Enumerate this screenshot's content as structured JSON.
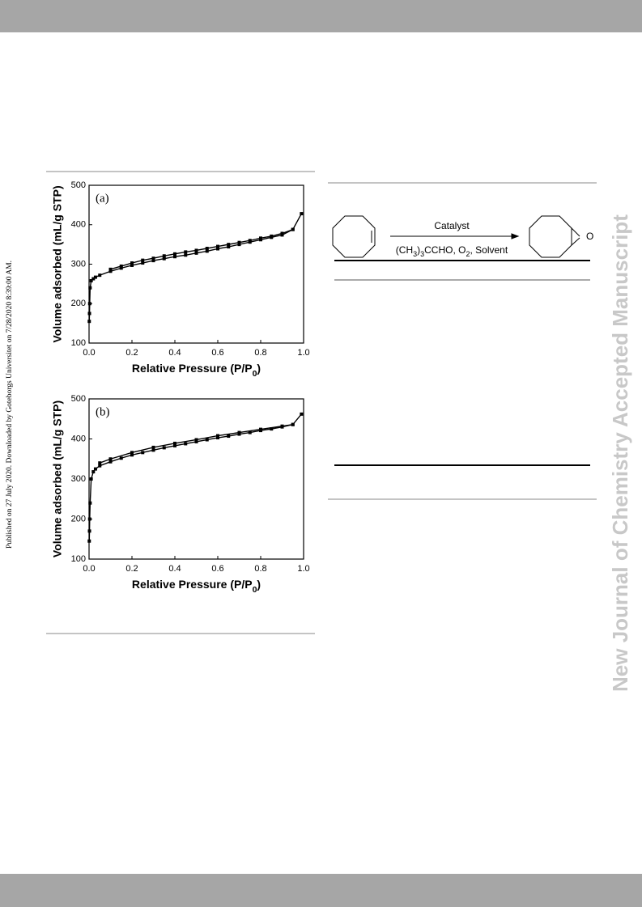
{
  "side_note": "Published on 27 July 2020. Downloaded by Goteborgs Universitet on 7/28/2020 8:39:00 AM.",
  "watermark": "New Journal of Chemistry Accepted Manuscript",
  "scheme": {
    "above_arrow": "Catalyst",
    "below_arrow": [
      {
        "text": "(CH"
      },
      {
        "text": "3",
        "sub": true
      },
      {
        "text": ")"
      },
      {
        "text": "3",
        "sub": true
      },
      {
        "text": "CCHO, O"
      },
      {
        "text": "2",
        "sub": true
      },
      {
        "text": ", Solvent"
      }
    ],
    "product_atom": "O"
  },
  "chart_data": [
    {
      "type": "line",
      "annotation": "(a)",
      "y_label": "Volume adsorbed (mL/g STP)",
      "x_label": [
        {
          "text": "Relative Pressure (P/P"
        },
        {
          "text": "0",
          "sub": true
        },
        {
          "text": ")"
        }
      ],
      "xlim": [
        0,
        1
      ],
      "ylim": [
        100,
        500
      ],
      "xticks": [
        {
          "value": 0,
          "label": "0.0"
        },
        0.2,
        0.4,
        0.6,
        0.8,
        {
          "value": 1,
          "label": "1.0"
        }
      ],
      "yticks": [
        100,
        200,
        300,
        400,
        500
      ],
      "color": "#000000",
      "series": [
        {
          "x": [
            0.001,
            0.002,
            0.003,
            0.005,
            0.01,
            0.02,
            0.03,
            0.05,
            0.1,
            0.15,
            0.2,
            0.25,
            0.3,
            0.35,
            0.4,
            0.45,
            0.5,
            0.55,
            0.6,
            0.65,
            0.7,
            0.75,
            0.8,
            0.85,
            0.9,
            0.95,
            0.99
          ],
          "values": [
            155,
            175,
            200,
            240,
            258,
            263,
            267,
            272,
            282,
            290,
            297,
            303,
            309,
            314,
            319,
            323,
            328,
            333,
            339,
            344,
            350,
            356,
            362,
            368,
            374,
            388,
            428
          ]
        },
        {
          "x": [
            0.95,
            0.9,
            0.85,
            0.8,
            0.75,
            0.7,
            0.65,
            0.6,
            0.55,
            0.5,
            0.45,
            0.4,
            0.35,
            0.3,
            0.25,
            0.2,
            0.15,
            0.1
          ],
          "values": [
            388,
            378,
            371,
            366,
            360,
            355,
            350,
            345,
            340,
            335,
            331,
            326,
            321,
            315,
            310,
            303,
            295,
            287
          ]
        }
      ]
    },
    {
      "type": "line",
      "annotation": "(b)",
      "y_label": "Volume adsorbed (mL/g STP)",
      "x_label": [
        {
          "text": "Relative Pressure (P/P"
        },
        {
          "text": "0",
          "sub": true
        },
        {
          "text": ")"
        }
      ],
      "xlim": [
        0,
        1
      ],
      "ylim": [
        100,
        500
      ],
      "xticks": [
        {
          "value": 0,
          "label": "0.0"
        },
        0.2,
        0.4,
        0.6,
        0.8,
        {
          "value": 1,
          "label": "1.0"
        }
      ],
      "yticks": [
        100,
        200,
        300,
        400,
        500
      ],
      "color": "#000000",
      "series": [
        {
          "x": [
            0.001,
            0.002,
            0.003,
            0.005,
            0.01,
            0.02,
            0.03,
            0.05,
            0.1,
            0.15,
            0.2,
            0.25,
            0.3,
            0.35,
            0.4,
            0.45,
            0.5,
            0.55,
            0.6,
            0.65,
            0.7,
            0.75,
            0.8,
            0.85,
            0.9,
            0.95,
            0.99
          ],
          "values": [
            145,
            170,
            200,
            240,
            300,
            318,
            325,
            333,
            343,
            352,
            360,
            366,
            372,
            378,
            383,
            388,
            393,
            398,
            403,
            407,
            412,
            416,
            421,
            425,
            430,
            436,
            462
          ]
        },
        {
          "x": [
            0.95,
            0.9,
            0.8,
            0.7,
            0.6,
            0.5,
            0.4,
            0.3,
            0.2,
            0.1,
            0.05
          ],
          "values": [
            436,
            432,
            424,
            416,
            408,
            398,
            389,
            379,
            366,
            350,
            340
          ]
        }
      ]
    }
  ]
}
